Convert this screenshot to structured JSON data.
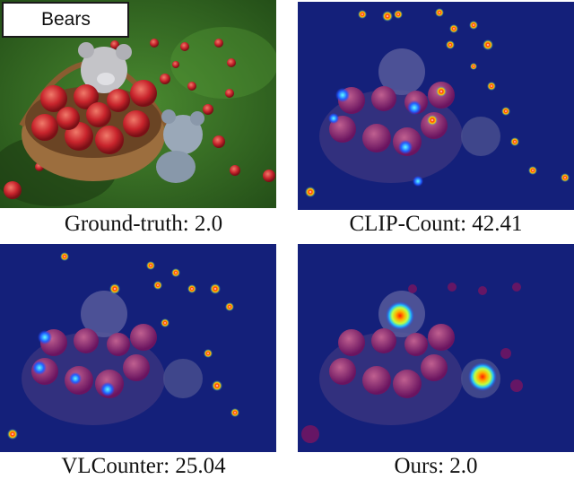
{
  "query_label": "Bears",
  "captions": {
    "ground_truth": "Ground-truth: 2.0",
    "clip_count": "CLIP-Count: 42.41",
    "vlcounter": "VLCounter: 25.04",
    "ours": "Ours: 2.0"
  },
  "colors": {
    "grass": "#3f7a2a",
    "overlay": "#1a2a9a",
    "apple": "#c8242c",
    "hot": "#ff2a00"
  }
}
